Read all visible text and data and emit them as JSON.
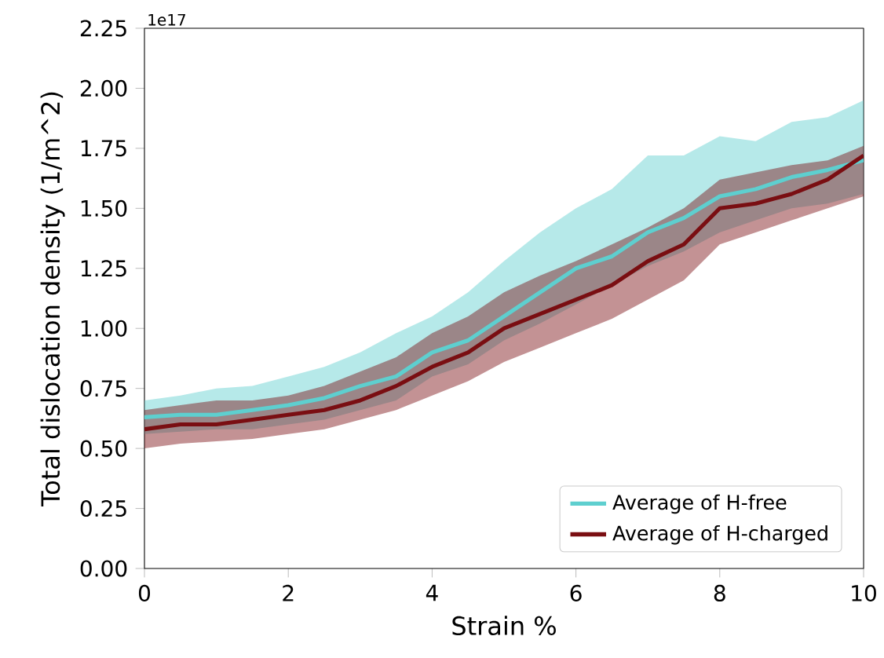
{
  "chart_data": {
    "type": "line",
    "xlabel": "Strain %",
    "ylabel": "Total dislocation density (1/m^2)",
    "annotations": [
      "1e17"
    ],
    "x": [
      0,
      0.5,
      1,
      1.5,
      2,
      2.5,
      3,
      3.5,
      4,
      4.5,
      5,
      5.5,
      6,
      6.5,
      7,
      7.5,
      8,
      8.5,
      9,
      9.5,
      10
    ],
    "series": [
      {
        "name": "Average of H-free",
        "color": "#5ecfcf",
        "values": [
          0.63,
          0.64,
          0.64,
          0.66,
          0.68,
          0.71,
          0.76,
          0.8,
          0.9,
          0.95,
          1.05,
          1.15,
          1.25,
          1.3,
          1.4,
          1.46,
          1.55,
          1.58,
          1.63,
          1.66,
          1.7
        ],
        "upper": [
          0.7,
          0.72,
          0.75,
          0.76,
          0.8,
          0.84,
          0.9,
          0.98,
          1.05,
          1.15,
          1.28,
          1.4,
          1.5,
          1.58,
          1.72,
          1.72,
          1.8,
          1.78,
          1.86,
          1.88,
          1.95
        ],
        "lower": [
          0.56,
          0.57,
          0.58,
          0.58,
          0.6,
          0.62,
          0.66,
          0.7,
          0.8,
          0.85,
          0.95,
          1.02,
          1.1,
          1.18,
          1.26,
          1.32,
          1.4,
          1.45,
          1.5,
          1.52,
          1.56
        ]
      },
      {
        "name": "Average of H-charged",
        "color": "#7a0e12",
        "values": [
          0.58,
          0.6,
          0.6,
          0.62,
          0.64,
          0.66,
          0.7,
          0.76,
          0.84,
          0.9,
          1.0,
          1.06,
          1.12,
          1.18,
          1.28,
          1.35,
          1.5,
          1.52,
          1.56,
          1.62,
          1.72
        ],
        "upper": [
          0.66,
          0.68,
          0.7,
          0.7,
          0.72,
          0.76,
          0.82,
          0.88,
          0.98,
          1.05,
          1.15,
          1.22,
          1.28,
          1.35,
          1.42,
          1.5,
          1.62,
          1.65,
          1.68,
          1.7,
          1.76
        ],
        "lower": [
          0.5,
          0.52,
          0.53,
          0.54,
          0.56,
          0.58,
          0.62,
          0.66,
          0.72,
          0.78,
          0.86,
          0.92,
          0.98,
          1.04,
          1.12,
          1.2,
          1.35,
          1.4,
          1.45,
          1.5,
          1.55
        ]
      }
    ],
    "xlim": [
      0,
      10
    ],
    "xticks": [
      0,
      2,
      4,
      6,
      8,
      10
    ],
    "ylim": [
      0,
      2.25
    ],
    "yticks": [
      {
        "value": 0,
        "label": "0.00"
      },
      {
        "value": 0.25,
        "label": "0.25"
      },
      {
        "value": 0.5,
        "label": "0.50"
      },
      {
        "value": 0.75,
        "label": "0.75"
      },
      {
        "value": 1,
        "label": "1.00"
      },
      {
        "value": 1.25,
        "label": "1.25"
      },
      {
        "value": 1.5,
        "label": "1.50"
      },
      {
        "value": 1.75,
        "label": "1.75"
      },
      {
        "value": 2,
        "label": "2.00"
      },
      {
        "value": 2.25,
        "label": "2.25"
      }
    ],
    "legend": "bottom right",
    "grid": false,
    "marker": "none",
    "line_style": "solid"
  }
}
